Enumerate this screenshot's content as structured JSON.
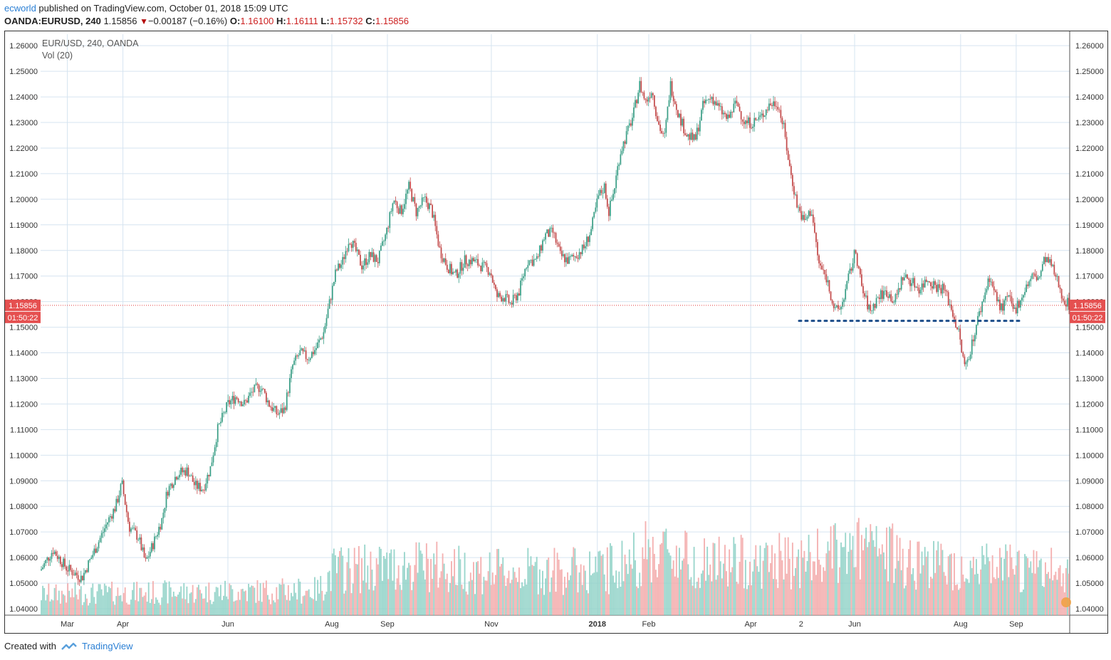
{
  "header": {
    "author": "ecworld",
    "published": "published on TradingView.com, October 01, 2018 15:09 UTC",
    "symbol": "OANDA:EURUSD, 240",
    "last": "1.15856",
    "change": "−0.00187 (−0.16%)",
    "o_label": "O:",
    "o": "1.16100",
    "h_label": "H:",
    "h": "1.16111",
    "l_label": "L:",
    "l": "1.15732",
    "c_label": "C:",
    "c": "1.15856"
  },
  "legend": {
    "series": "EUR/USD, 240, OANDA",
    "indicator": "Vol (20)"
  },
  "footer": {
    "created_with": "Created with",
    "brand": "TradingView"
  },
  "colors": {
    "up": "#3a9e86",
    "down": "#c34a4a",
    "vol_up": "#8fd1c6",
    "vol_down": "#f3a8a8",
    "grid": "#d6e4f0",
    "price_line": "#e23b3b",
    "support_dots": "#1c4d8a",
    "badge": "#e55050"
  },
  "chart_data": {
    "type": "candlestick",
    "symbol": "EUR/USD",
    "timeframe": "240",
    "ylim": [
      1.0375,
      1.2645
    ],
    "y_ticks": [
      "1.04000",
      "1.05000",
      "1.06000",
      "1.07000",
      "1.08000",
      "1.09000",
      "1.10000",
      "1.11000",
      "1.12000",
      "1.13000",
      "1.14000",
      "1.15000",
      "1.16000",
      "1.17000",
      "1.18000",
      "1.19000",
      "1.20000",
      "1.21000",
      "1.22000",
      "1.23000",
      "1.24000",
      "1.25000",
      "1.26000"
    ],
    "x_tick_labels": [
      "Mar",
      "Apr",
      "Jun",
      "Aug",
      "Sep",
      "Nov",
      "2018",
      "Feb",
      "Apr",
      "2",
      "Jun",
      "Aug",
      "Sep"
    ],
    "x_tick_t": [
      0.026,
      0.08,
      0.182,
      0.283,
      0.337,
      0.438,
      0.541,
      0.591,
      0.69,
      0.739,
      0.791,
      0.894,
      0.948
    ],
    "last_price": 1.15856,
    "countdown": "01:50:22",
    "price_path": [
      {
        "t": 0.0,
        "v": 1.055
      },
      {
        "t": 0.012,
        "v": 1.063
      },
      {
        "t": 0.025,
        "v": 1.056
      },
      {
        "t": 0.04,
        "v": 1.052
      },
      {
        "t": 0.055,
        "v": 1.065
      },
      {
        "t": 0.065,
        "v": 1.074
      },
      {
        "t": 0.073,
        "v": 1.08
      },
      {
        "t": 0.079,
        "v": 1.089
      },
      {
        "t": 0.086,
        "v": 1.072
      },
      {
        "t": 0.095,
        "v": 1.068
      },
      {
        "t": 0.102,
        "v": 1.058
      },
      {
        "t": 0.11,
        "v": 1.066
      },
      {
        "t": 0.118,
        "v": 1.075
      },
      {
        "t": 0.123,
        "v": 1.086
      },
      {
        "t": 0.133,
        "v": 1.093
      },
      {
        "t": 0.143,
        "v": 1.094
      },
      {
        "t": 0.15,
        "v": 1.088
      },
      {
        "t": 0.158,
        "v": 1.087
      },
      {
        "t": 0.165,
        "v": 1.095
      },
      {
        "t": 0.172,
        "v": 1.11
      },
      {
        "t": 0.182,
        "v": 1.12
      },
      {
        "t": 0.19,
        "v": 1.123
      },
      {
        "t": 0.198,
        "v": 1.12
      },
      {
        "t": 0.206,
        "v": 1.125
      },
      {
        "t": 0.214,
        "v": 1.127
      },
      {
        "t": 0.222,
        "v": 1.12
      },
      {
        "t": 0.23,
        "v": 1.116
      },
      {
        "t": 0.237,
        "v": 1.118
      },
      {
        "t": 0.245,
        "v": 1.135
      },
      {
        "t": 0.252,
        "v": 1.14
      },
      {
        "t": 0.26,
        "v": 1.138
      },
      {
        "t": 0.268,
        "v": 1.142
      },
      {
        "t": 0.275,
        "v": 1.148
      },
      {
        "t": 0.281,
        "v": 1.16
      },
      {
        "t": 0.287,
        "v": 1.172
      },
      {
        "t": 0.293,
        "v": 1.175
      },
      {
        "t": 0.3,
        "v": 1.185
      },
      {
        "t": 0.306,
        "v": 1.18
      },
      {
        "t": 0.312,
        "v": 1.174
      },
      {
        "t": 0.32,
        "v": 1.178
      },
      {
        "t": 0.328,
        "v": 1.176
      },
      {
        "t": 0.336,
        "v": 1.187
      },
      {
        "t": 0.343,
        "v": 1.2
      },
      {
        "t": 0.35,
        "v": 1.195
      },
      {
        "t": 0.358,
        "v": 1.205
      },
      {
        "t": 0.365,
        "v": 1.195
      },
      {
        "t": 0.373,
        "v": 1.2
      },
      {
        "t": 0.38,
        "v": 1.196
      },
      {
        "t": 0.388,
        "v": 1.18
      },
      {
        "t": 0.395,
        "v": 1.174
      },
      {
        "t": 0.403,
        "v": 1.17
      },
      {
        "t": 0.412,
        "v": 1.176
      },
      {
        "t": 0.42,
        "v": 1.176
      },
      {
        "t": 0.428,
        "v": 1.174
      },
      {
        "t": 0.437,
        "v": 1.172
      },
      {
        "t": 0.443,
        "v": 1.162
      },
      {
        "t": 0.45,
        "v": 1.162
      },
      {
        "t": 0.457,
        "v": 1.159
      },
      {
        "t": 0.465,
        "v": 1.164
      },
      {
        "t": 0.473,
        "v": 1.176
      },
      {
        "t": 0.482,
        "v": 1.176
      },
      {
        "t": 0.49,
        "v": 1.186
      },
      {
        "t": 0.498,
        "v": 1.187
      },
      {
        "t": 0.505,
        "v": 1.178
      },
      {
        "t": 0.513,
        "v": 1.176
      },
      {
        "t": 0.52,
        "v": 1.178
      },
      {
        "t": 0.528,
        "v": 1.181
      },
      {
        "t": 0.535,
        "v": 1.188
      },
      {
        "t": 0.542,
        "v": 1.201
      },
      {
        "t": 0.548,
        "v": 1.205
      },
      {
        "t": 0.552,
        "v": 1.195
      },
      {
        "t": 0.557,
        "v": 1.203
      },
      {
        "t": 0.563,
        "v": 1.218
      },
      {
        "t": 0.57,
        "v": 1.226
      },
      {
        "t": 0.576,
        "v": 1.233
      },
      {
        "t": 0.582,
        "v": 1.245
      },
      {
        "t": 0.588,
        "v": 1.238
      },
      {
        "t": 0.594,
        "v": 1.243
      },
      {
        "t": 0.6,
        "v": 1.23
      },
      {
        "t": 0.606,
        "v": 1.223
      },
      {
        "t": 0.612,
        "v": 1.245
      },
      {
        "t": 0.62,
        "v": 1.233
      },
      {
        "t": 0.628,
        "v": 1.225
      },
      {
        "t": 0.636,
        "v": 1.223
      },
      {
        "t": 0.644,
        "v": 1.237
      },
      {
        "t": 0.652,
        "v": 1.24
      },
      {
        "t": 0.66,
        "v": 1.235
      },
      {
        "t": 0.668,
        "v": 1.231
      },
      {
        "t": 0.676,
        "v": 1.238
      },
      {
        "t": 0.684,
        "v": 1.23
      },
      {
        "t": 0.692,
        "v": 1.23
      },
      {
        "t": 0.7,
        "v": 1.232
      },
      {
        "t": 0.708,
        "v": 1.237
      },
      {
        "t": 0.716,
        "v": 1.238
      },
      {
        "t": 0.722,
        "v": 1.228
      },
      {
        "t": 0.728,
        "v": 1.212
      },
      {
        "t": 0.735,
        "v": 1.198
      },
      {
        "t": 0.742,
        "v": 1.191
      },
      {
        "t": 0.749,
        "v": 1.196
      },
      {
        "t": 0.756,
        "v": 1.175
      },
      {
        "t": 0.764,
        "v": 1.169
      },
      {
        "t": 0.772,
        "v": 1.156
      },
      {
        "t": 0.778,
        "v": 1.158
      },
      {
        "t": 0.785,
        "v": 1.169
      },
      {
        "t": 0.792,
        "v": 1.18
      },
      {
        "t": 0.798,
        "v": 1.165
      },
      {
        "t": 0.806,
        "v": 1.156
      },
      {
        "t": 0.814,
        "v": 1.162
      },
      {
        "t": 0.822,
        "v": 1.164
      },
      {
        "t": 0.83,
        "v": 1.16
      },
      {
        "t": 0.838,
        "v": 1.17
      },
      {
        "t": 0.846,
        "v": 1.168
      },
      {
        "t": 0.854,
        "v": 1.165
      },
      {
        "t": 0.862,
        "v": 1.169
      },
      {
        "t": 0.87,
        "v": 1.166
      },
      {
        "t": 0.878,
        "v": 1.165
      },
      {
        "t": 0.886,
        "v": 1.156
      },
      {
        "t": 0.892,
        "v": 1.148
      },
      {
        "t": 0.898,
        "v": 1.134
      },
      {
        "t": 0.904,
        "v": 1.142
      },
      {
        "t": 0.91,
        "v": 1.152
      },
      {
        "t": 0.916,
        "v": 1.161
      },
      {
        "t": 0.922,
        "v": 1.17
      },
      {
        "t": 0.928,
        "v": 1.162
      },
      {
        "t": 0.934,
        "v": 1.157
      },
      {
        "t": 0.94,
        "v": 1.162
      },
      {
        "t": 0.946,
        "v": 1.156
      },
      {
        "t": 0.952,
        "v": 1.161
      },
      {
        "t": 0.958,
        "v": 1.166
      },
      {
        "t": 0.964,
        "v": 1.17
      },
      {
        "t": 0.97,
        "v": 1.169
      },
      {
        "t": 0.976,
        "v": 1.177
      },
      {
        "t": 0.982,
        "v": 1.174
      },
      {
        "t": 0.988,
        "v": 1.168
      },
      {
        "t": 0.994,
        "v": 1.161
      },
      {
        "t": 1.0,
        "v": 1.1586
      }
    ],
    "volume_profile": [
      {
        "t": 0.0,
        "v": 0.25
      },
      {
        "t": 0.27,
        "v": 0.3
      },
      {
        "t": 0.285,
        "v": 0.55
      },
      {
        "t": 0.37,
        "v": 0.6
      },
      {
        "t": 0.44,
        "v": 0.52
      },
      {
        "t": 0.55,
        "v": 0.55
      },
      {
        "t": 0.6,
        "v": 0.8
      },
      {
        "t": 0.65,
        "v": 0.62
      },
      {
        "t": 0.74,
        "v": 0.65
      },
      {
        "t": 0.8,
        "v": 0.8
      },
      {
        "t": 0.88,
        "v": 0.6
      },
      {
        "t": 1.0,
        "v": 0.52
      }
    ],
    "support_line": {
      "level": 1.1525,
      "t_start": 0.737,
      "t_end": 0.951,
      "style": "dotted"
    }
  }
}
